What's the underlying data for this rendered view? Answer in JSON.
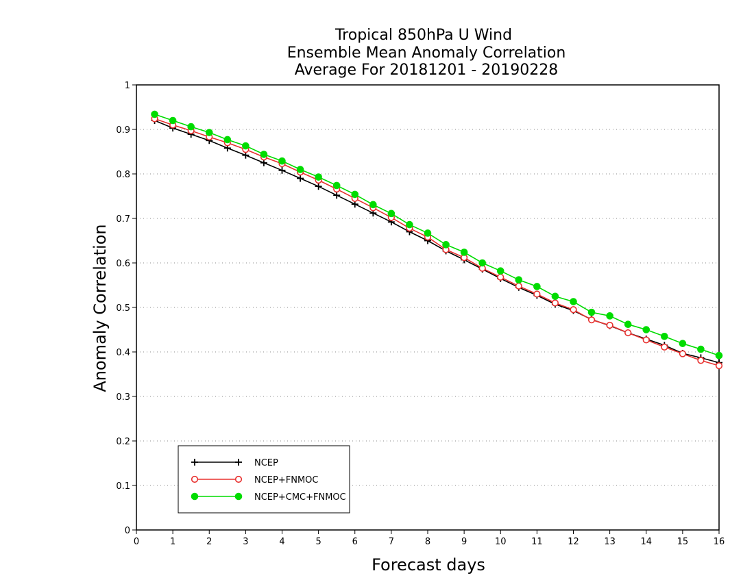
{
  "chart_data": {
    "type": "line",
    "title": [
      "Tropical 850hPa U Wind",
      "Ensemble Mean Anomaly Correlation",
      "Average For 20181201 - 20190228"
    ],
    "xlabel": "Forecast days",
    "ylabel": "Anomaly Correlation",
    "xlim": [
      0,
      16
    ],
    "ylim": [
      0,
      1
    ],
    "xticks": [
      "0",
      "1",
      "2",
      "3",
      "4",
      "5",
      "6",
      "7",
      "8",
      "9",
      "10",
      "11",
      "12",
      "13",
      "14",
      "15",
      "16"
    ],
    "yticks": [
      "0",
      "0.1",
      "0.2",
      "0.3",
      "0.4",
      "0.5",
      "0.6",
      "0.7",
      "0.8",
      "0.9",
      "1"
    ],
    "grid": "horizontal dotted",
    "legend_position": "bottom-left",
    "x": [
      0.5,
      1,
      1.5,
      2,
      2.5,
      3,
      3.5,
      4,
      4.5,
      5,
      5.5,
      6,
      6.5,
      7,
      7.5,
      8,
      8.5,
      9,
      9.5,
      10,
      10.5,
      11,
      11.5,
      12,
      12.5,
      13,
      13.5,
      14,
      14.5,
      15,
      15.5,
      16
    ],
    "series": [
      {
        "name": "NCEP",
        "color": "#000000",
        "marker": "plus",
        "values": [
          0.92,
          0.903,
          0.889,
          0.875,
          0.858,
          0.842,
          0.825,
          0.808,
          0.79,
          0.772,
          0.752,
          0.732,
          0.712,
          0.692,
          0.67,
          0.65,
          0.627,
          0.607,
          0.586,
          0.565,
          0.545,
          0.527,
          0.507,
          0.493,
          0.473,
          0.459,
          0.443,
          0.429,
          0.415,
          0.397,
          0.387,
          0.376
        ]
      },
      {
        "name": "NCEP+FNMOC",
        "color": "#e8302e",
        "marker": "open-circle",
        "values": [
          0.924,
          0.91,
          0.897,
          0.883,
          0.87,
          0.855,
          0.838,
          0.823,
          0.804,
          0.786,
          0.766,
          0.745,
          0.724,
          0.702,
          0.678,
          0.658,
          0.63,
          0.612,
          0.588,
          0.568,
          0.548,
          0.53,
          0.51,
          0.495,
          0.472,
          0.46,
          0.443,
          0.427,
          0.411,
          0.396,
          0.381,
          0.369
        ]
      },
      {
        "name": "NCEP+CMC+FNMOC",
        "color": "#00dc00",
        "marker": "filled-circle",
        "values": [
          0.934,
          0.92,
          0.906,
          0.893,
          0.877,
          0.863,
          0.844,
          0.829,
          0.81,
          0.793,
          0.774,
          0.754,
          0.731,
          0.711,
          0.686,
          0.667,
          0.641,
          0.624,
          0.6,
          0.582,
          0.562,
          0.547,
          0.525,
          0.513,
          0.489,
          0.481,
          0.462,
          0.45,
          0.435,
          0.419,
          0.406,
          0.392
        ]
      }
    ]
  }
}
